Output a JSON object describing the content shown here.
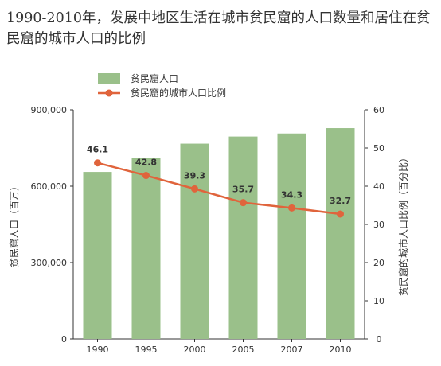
{
  "title": "1990-2010年，发展中地区生活在城市贫民窟的人口数量和居住在贫民窟的城市人口的比例",
  "colors": {
    "bar": "#9ac08a",
    "line": "#e0643c",
    "axis": "#333333"
  },
  "chart_data": {
    "type": "bar+line",
    "categories": [
      "1990",
      "1995",
      "2000",
      "2005",
      "2007",
      "2010"
    ],
    "series": [
      {
        "name": "贫民窟人口",
        "type": "bar",
        "axis": "left",
        "values": [
          656000,
          712000,
          767000,
          795000,
          807000,
          828000
        ]
      },
      {
        "name": "贫民窟的城市人口比例",
        "type": "line",
        "axis": "right",
        "values": [
          46.1,
          42.8,
          39.3,
          35.7,
          34.3,
          32.7
        ]
      }
    ],
    "data_labels": [
      "46.1",
      "42.8",
      "39.3",
      "35.7",
      "34.3",
      "32.7"
    ],
    "y_left": {
      "label": "贫民窟人口（百万）",
      "range": [
        0,
        900000
      ],
      "ticks": [
        0,
        300000,
        600000,
        900000
      ],
      "tick_labels": [
        "0",
        "300,000",
        "600,000",
        "900,000"
      ]
    },
    "y_right": {
      "label": "贫民窟的城市人口比例（百分比）",
      "range": [
        0,
        60
      ],
      "ticks": [
        0,
        10,
        20,
        30,
        40,
        50,
        60
      ],
      "tick_labels": [
        "0",
        "10",
        "20",
        "30",
        "40",
        "50",
        "60"
      ]
    },
    "legend_position": "top-left",
    "grid": false
  }
}
